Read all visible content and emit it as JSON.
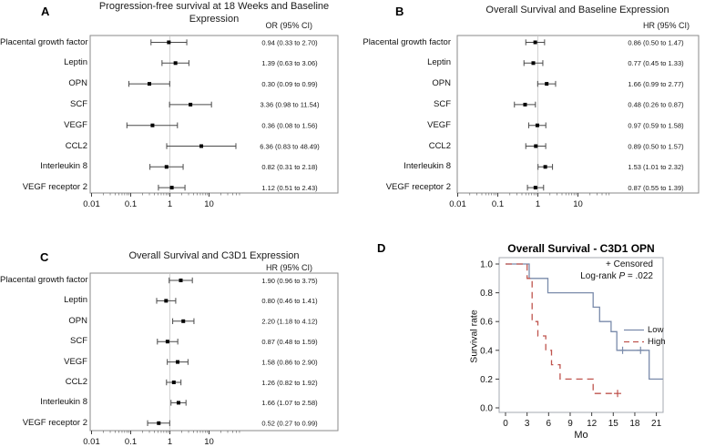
{
  "chart_data": [
    {
      "id": "A",
      "type": "forest",
      "title": "Progression-free survival at 18 Weeks and Baseline Expression",
      "title_lines": [
        "Progression-free survival at 18 Weeks and Baseline",
        "Expression"
      ],
      "effect_label": "OR (95% CI)",
      "x_scale": "log",
      "x_tick_labels": [
        "0.01",
        "0.1",
        "1",
        "10"
      ],
      "reference_line": 1,
      "rows": [
        {
          "label": "Placental growth factor",
          "est": 0.94,
          "lo": 0.33,
          "hi": 2.7,
          "text": "0.94 (0.33 to 2.70)"
        },
        {
          "label": "Leptin",
          "est": 1.39,
          "lo": 0.63,
          "hi": 3.06,
          "text": "1.39 (0.63 to 3.06)"
        },
        {
          "label": "OPN",
          "est": 0.3,
          "lo": 0.09,
          "hi": 0.99,
          "text": "0.30 (0.09 to 0.99)"
        },
        {
          "label": "SCF",
          "est": 3.36,
          "lo": 0.98,
          "hi": 11.54,
          "text": "3.36 (0.98 to 11.54)"
        },
        {
          "label": "VEGF",
          "est": 0.36,
          "lo": 0.08,
          "hi": 1.56,
          "text": "0.36 (0.08 to 1.56)"
        },
        {
          "label": "CCL2",
          "est": 6.36,
          "lo": 0.83,
          "hi": 48.49,
          "text": "6.36 (0.83 to 48.49)"
        },
        {
          "label": "Interleukin 8",
          "est": 0.82,
          "lo": 0.31,
          "hi": 2.18,
          "text": "0.82 (0.31 to 2.18)"
        },
        {
          "label": "VEGF receptor 2",
          "est": 1.12,
          "lo": 0.51,
          "hi": 2.43,
          "text": "1.12 (0.51 to 2.43)"
        }
      ]
    },
    {
      "id": "B",
      "type": "forest",
      "title": "Overall Survival and Baseline Expression",
      "title_lines": [
        "Overall Survival and Baseline Expression"
      ],
      "effect_label": "HR (95% CI)",
      "x_scale": "log",
      "x_tick_labels": [
        "0.01",
        "0.1",
        "1",
        "10"
      ],
      "reference_line": 1,
      "rows": [
        {
          "label": "Placental growth factor",
          "est": 0.86,
          "lo": 0.5,
          "hi": 1.47,
          "text": "0.86 (0.50 to 1.47)"
        },
        {
          "label": "Leptin",
          "est": 0.77,
          "lo": 0.45,
          "hi": 1.33,
          "text": "0.77 (0.45 to 1.33)"
        },
        {
          "label": "OPN",
          "est": 1.66,
          "lo": 0.99,
          "hi": 2.77,
          "text": "1.66 (0.99 to 2.77)"
        },
        {
          "label": "SCF",
          "est": 0.48,
          "lo": 0.26,
          "hi": 0.87,
          "text": "0.48 (0.26 to 0.87)"
        },
        {
          "label": "VEGF",
          "est": 0.97,
          "lo": 0.59,
          "hi": 1.58,
          "text": "0.97 (0.59 to 1.58)"
        },
        {
          "label": "CCL2",
          "est": 0.89,
          "lo": 0.5,
          "hi": 1.57,
          "text": "0.89 (0.50 to 1.57)"
        },
        {
          "label": "Interleukin 8",
          "est": 1.53,
          "lo": 1.01,
          "hi": 2.32,
          "text": "1.53 (1.01 to 2.32)"
        },
        {
          "label": "VEGF receptor 2",
          "est": 0.87,
          "lo": 0.55,
          "hi": 1.39,
          "text": "0.87 (0.55 to 1.39)"
        }
      ]
    },
    {
      "id": "C",
      "type": "forest",
      "title": "Overall Survival and C3D1 Expression",
      "title_lines": [
        "Overall Survival and C3D1 Expression"
      ],
      "effect_label": "HR (95% CI)",
      "x_scale": "log",
      "x_tick_labels": [
        "0.01",
        "0.1",
        "1",
        "10"
      ],
      "reference_line": 1,
      "rows": [
        {
          "label": "Placental growth factor",
          "est": 1.9,
          "lo": 0.96,
          "hi": 3.75,
          "text": "1.90 (0.96 to 3.75)"
        },
        {
          "label": "Leptin",
          "est": 0.8,
          "lo": 0.46,
          "hi": 1.41,
          "text": "0.80 (0.46 to 1.41)"
        },
        {
          "label": "OPN",
          "est": 2.2,
          "lo": 1.18,
          "hi": 4.12,
          "text": "2.20 (1.18 to 4.12)"
        },
        {
          "label": "SCF",
          "est": 0.87,
          "lo": 0.48,
          "hi": 1.59,
          "text": "0.87 (0.48 to 1.59)"
        },
        {
          "label": "VEGF",
          "est": 1.58,
          "lo": 0.86,
          "hi": 2.9,
          "text": "1.58 (0.86 to 2.90)"
        },
        {
          "label": "CCL2",
          "est": 1.26,
          "lo": 0.82,
          "hi": 1.92,
          "text": "1.26 (0.82 to 1.92)"
        },
        {
          "label": "Interleukin 8",
          "est": 1.66,
          "lo": 1.07,
          "hi": 2.58,
          "text": "1.66 (1.07 to 2.58)"
        },
        {
          "label": "VEGF receptor 2",
          "est": 0.52,
          "lo": 0.27,
          "hi": 0.99,
          "text": "0.52 (0.27 to 0.99)"
        }
      ]
    },
    {
      "id": "D",
      "type": "km",
      "title": "Overall Survival - C3D1 OPN",
      "xlabel": "Mo",
      "ylabel": "Survival rate",
      "xlim": [
        0,
        22
      ],
      "ylim": [
        0.0,
        1.0
      ],
      "x_ticks": [
        0,
        3,
        6,
        9,
        12,
        15,
        18,
        21
      ],
      "x_tick_labels": [
        "0",
        "3",
        "6",
        "9",
        "12",
        "15",
        "18",
        "21"
      ],
      "y_ticks": [
        0.0,
        0.2,
        0.4,
        0.6,
        0.8,
        1.0
      ],
      "y_tick_labels": [
        "0.0",
        "0.2",
        "0.4",
        "0.6",
        "0.8",
        "1.0"
      ],
      "censored_note": "+ Censored",
      "logrank_prefix": "Log-rank",
      "p_symbol": "P",
      "logrank_value": "= .022",
      "series": [
        {
          "name": "Low",
          "style": "solid",
          "color": "#7a8bab",
          "steps": [
            [
              0,
              1.0
            ],
            [
              3.3,
              1.0
            ],
            [
              3.3,
              0.9
            ],
            [
              5.9,
              0.9
            ],
            [
              5.9,
              0.8
            ],
            [
              12.2,
              0.8
            ],
            [
              12.2,
              0.7
            ],
            [
              13.1,
              0.7
            ],
            [
              13.1,
              0.6
            ],
            [
              14.7,
              0.6
            ],
            [
              14.7,
              0.53
            ],
            [
              15.5,
              0.53
            ],
            [
              15.5,
              0.4
            ],
            [
              20.0,
              0.4
            ],
            [
              20.0,
              0.2
            ],
            [
              21.9,
              0.2
            ]
          ],
          "censored": [
            [
              16.3,
              0.4
            ],
            [
              18.8,
              0.4
            ]
          ]
        },
        {
          "name": "High",
          "style": "dashed",
          "color": "#bf544e",
          "steps": [
            [
              0,
              1.0
            ],
            [
              3.0,
              1.0
            ],
            [
              3.0,
              0.9
            ],
            [
              3.7,
              0.9
            ],
            [
              3.7,
              0.6
            ],
            [
              4.5,
              0.6
            ],
            [
              4.5,
              0.5
            ],
            [
              5.6,
              0.5
            ],
            [
              5.6,
              0.4
            ],
            [
              6.4,
              0.4
            ],
            [
              6.4,
              0.3
            ],
            [
              7.6,
              0.3
            ],
            [
              7.6,
              0.2
            ],
            [
              12.2,
              0.2
            ],
            [
              12.2,
              0.1
            ],
            [
              15.6,
              0.1
            ]
          ],
          "censored": [
            [
              15.6,
              0.1
            ]
          ]
        }
      ]
    }
  ]
}
